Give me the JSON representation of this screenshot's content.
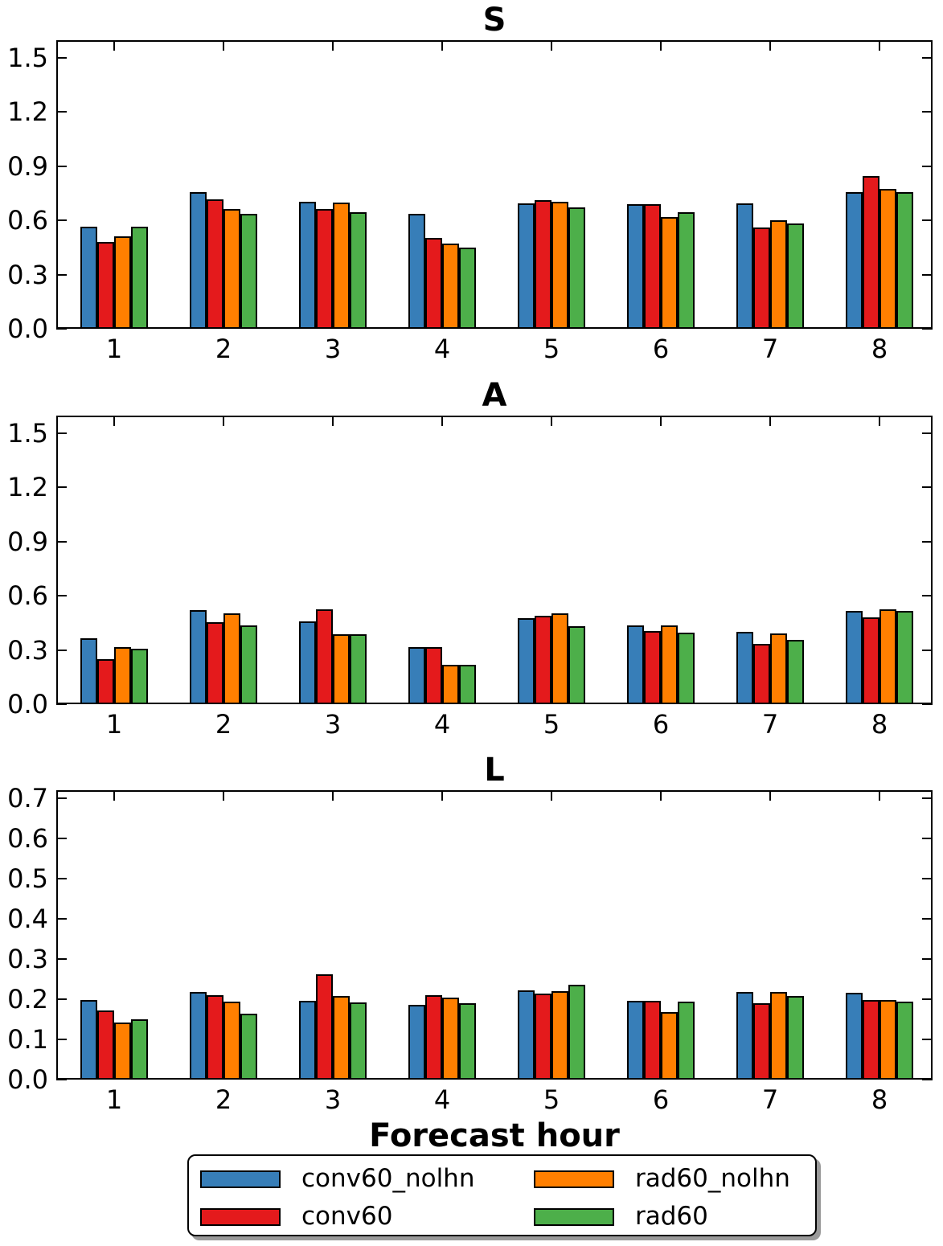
{
  "figure": {
    "xlabel": "Forecast hour",
    "background": "#ffffff",
    "text_color": "#000000"
  },
  "legend": {
    "entries": [
      {
        "label": "conv60_nolhn",
        "color": "#377EB8"
      },
      {
        "label": "conv60",
        "color": "#E41A1C"
      },
      {
        "label": "rad60_nolhn",
        "color": "#FF7F00"
      },
      {
        "label": "rad60",
        "color": "#4DAF4A"
      }
    ],
    "position": "bottom-center",
    "columns": 2,
    "border_color": "#000000",
    "shadow": true
  },
  "chart_data": [
    {
      "type": "bar",
      "title": "S",
      "xlabel": "",
      "ylabel": "",
      "categories": [
        "1",
        "2",
        "3",
        "4",
        "5",
        "6",
        "7",
        "8"
      ],
      "yticks": [
        0.0,
        0.3,
        0.6,
        0.9,
        1.2,
        1.5
      ],
      "ylim": [
        0.0,
        1.6
      ],
      "grid": false,
      "series": [
        {
          "name": "conv60_nolhn",
          "color": "#377EB8",
          "values": [
            0.565,
            0.755,
            0.705,
            0.635,
            0.695,
            0.69,
            0.695,
            0.755
          ]
        },
        {
          "name": "conv60",
          "color": "#E41A1C",
          "values": [
            0.48,
            0.715,
            0.665,
            0.505,
            0.71,
            0.69,
            0.56,
            0.845
          ]
        },
        {
          "name": "rad60_nolhn",
          "color": "#FF7F00",
          "values": [
            0.51,
            0.665,
            0.7,
            0.47,
            0.705,
            0.62,
            0.6,
            0.775
          ]
        },
        {
          "name": "rad60",
          "color": "#4DAF4A",
          "values": [
            0.565,
            0.635,
            0.645,
            0.45,
            0.67,
            0.645,
            0.585,
            0.755
          ]
        }
      ]
    },
    {
      "type": "bar",
      "title": "A",
      "xlabel": "",
      "ylabel": "",
      "categories": [
        "1",
        "2",
        "3",
        "4",
        "5",
        "6",
        "7",
        "8"
      ],
      "yticks": [
        0.0,
        0.3,
        0.6,
        0.9,
        1.2,
        1.5
      ],
      "ylim": [
        0.0,
        1.6
      ],
      "grid": false,
      "series": [
        {
          "name": "conv60_nolhn",
          "color": "#377EB8",
          "values": [
            0.365,
            0.52,
            0.46,
            0.315,
            0.475,
            0.435,
            0.4,
            0.515
          ]
        },
        {
          "name": "conv60",
          "color": "#E41A1C",
          "values": [
            0.25,
            0.455,
            0.525,
            0.315,
            0.49,
            0.405,
            0.335,
            0.48
          ]
        },
        {
          "name": "rad60_nolhn",
          "color": "#FF7F00",
          "values": [
            0.315,
            0.505,
            0.385,
            0.22,
            0.505,
            0.435,
            0.39,
            0.525
          ]
        },
        {
          "name": "rad60",
          "color": "#4DAF4A",
          "values": [
            0.305,
            0.435,
            0.385,
            0.22,
            0.43,
            0.395,
            0.355,
            0.515
          ]
        }
      ]
    },
    {
      "type": "bar",
      "title": "L",
      "xlabel": "Forecast hour",
      "ylabel": "",
      "categories": [
        "1",
        "2",
        "3",
        "4",
        "5",
        "6",
        "7",
        "8"
      ],
      "yticks": [
        0.0,
        0.1,
        0.2,
        0.3,
        0.4,
        0.5,
        0.6,
        0.7
      ],
      "ylim": [
        0.0,
        0.72
      ],
      "grid": false,
      "series": [
        {
          "name": "conv60_nolhn",
          "color": "#377EB8",
          "values": [
            0.197,
            0.218,
            0.196,
            0.185,
            0.221,
            0.196,
            0.217,
            0.215
          ]
        },
        {
          "name": "conv60",
          "color": "#E41A1C",
          "values": [
            0.172,
            0.209,
            0.262,
            0.209,
            0.213,
            0.196,
            0.189,
            0.198
          ]
        },
        {
          "name": "rad60_nolhn",
          "color": "#FF7F00",
          "values": [
            0.141,
            0.193,
            0.207,
            0.203,
            0.219,
            0.168,
            0.217,
            0.197
          ]
        },
        {
          "name": "rad60",
          "color": "#4DAF4A",
          "values": [
            0.15,
            0.163,
            0.192,
            0.189,
            0.235,
            0.194,
            0.207,
            0.193
          ]
        }
      ]
    }
  ]
}
